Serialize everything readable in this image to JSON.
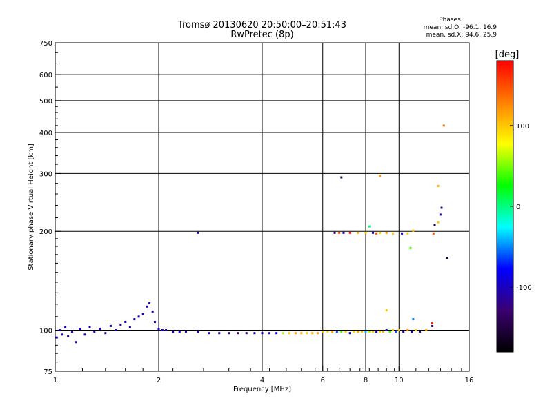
{
  "chart_data": {
    "type": "scatter",
    "title": "Tromsø 20130620 20:50:00–20:51:43",
    "subtitle": "RwPretec (8p)",
    "xlabel": "Frequency [MHz]",
    "ylabel": "Stationary phase Virtual Height [km]",
    "x_scale": "log",
    "y_scale": "log",
    "xlim": [
      1,
      16
    ],
    "ylim": [
      75,
      750
    ],
    "x_ticks": [
      1,
      2,
      4,
      6,
      8,
      10,
      16
    ],
    "x_tick_labels": [
      "1",
      "2",
      "4",
      "6",
      "8",
      "10",
      "16"
    ],
    "y_ticks": [
      75,
      100,
      200,
      300,
      400,
      500,
      600,
      750
    ],
    "y_tick_labels": [
      "75",
      "100",
      "200",
      "300",
      "400",
      "500",
      "600",
      "750"
    ],
    "grid_x": [
      2,
      4,
      6,
      8,
      10
    ],
    "grid_y": [
      100,
      200,
      300,
      400,
      500,
      600
    ],
    "stats": {
      "heading": "Phases",
      "line_o": "mean, sd,O: -96.1, 16.9",
      "line_x": "mean, sd,X:  94.6, 25.9"
    },
    "colorbar": {
      "label": "[deg]",
      "range": [
        -180,
        180
      ],
      "ticks": [
        100,
        0,
        -100
      ],
      "tick_labels": [
        "100",
        "0",
        "-100"
      ],
      "colormap": [
        "#000000",
        "#3a0070",
        "#0000ff",
        "#00ffff",
        "#00ff00",
        "#ffff00",
        "#ff8000",
        "#ff0000"
      ]
    },
    "series": [
      {
        "values": [
          [
            1.01,
            95,
            -105
          ],
          [
            1.03,
            100,
            -110
          ],
          [
            1.05,
            97,
            -100
          ],
          [
            1.07,
            102,
            -95
          ],
          [
            1.09,
            96,
            -120
          ],
          [
            1.12,
            99,
            -100
          ],
          [
            1.15,
            92,
            -110
          ],
          [
            1.18,
            101,
            -90
          ],
          [
            1.22,
            97,
            -100
          ],
          [
            1.26,
            102,
            -105
          ],
          [
            1.3,
            99,
            -100
          ],
          [
            1.35,
            101,
            -95
          ],
          [
            1.4,
            98,
            -110
          ],
          [
            1.45,
            103,
            -100
          ],
          [
            1.5,
            100,
            -100
          ],
          [
            1.55,
            104,
            -120
          ],
          [
            1.6,
            106,
            -100
          ],
          [
            1.65,
            102,
            -110
          ],
          [
            1.7,
            108,
            -100
          ],
          [
            1.75,
            110,
            -95
          ],
          [
            1.8,
            112,
            -105
          ],
          [
            1.85,
            118,
            -100
          ],
          [
            1.88,
            121,
            -110
          ],
          [
            1.92,
            114,
            -100
          ],
          [
            1.95,
            106,
            -100
          ],
          [
            2.0,
            101,
            -100
          ],
          [
            2.05,
            100,
            -105
          ],
          [
            2.1,
            100,
            -100
          ],
          [
            2.2,
            99,
            -100
          ],
          [
            2.3,
            99,
            -95
          ],
          [
            2.4,
            99,
            -100
          ],
          [
            2.6,
            99,
            -100
          ],
          [
            2.8,
            98,
            -100
          ],
          [
            3.0,
            98,
            -110
          ],
          [
            3.2,
            98,
            -120
          ],
          [
            3.4,
            98,
            -130
          ],
          [
            3.6,
            98,
            -120
          ],
          [
            3.8,
            98,
            -110
          ],
          [
            4.0,
            98,
            -100
          ],
          [
            4.2,
            98,
            -100
          ],
          [
            4.4,
            98,
            -80
          ],
          [
            4.6,
            98,
            60
          ],
          [
            4.8,
            98,
            100
          ],
          [
            5.0,
            98,
            120
          ],
          [
            5.2,
            98,
            110
          ],
          [
            5.4,
            98,
            100
          ],
          [
            5.6,
            98,
            110
          ],
          [
            5.8,
            98,
            120
          ],
          [
            6.0,
            99,
            100
          ],
          [
            6.2,
            99,
            90
          ],
          [
            6.4,
            99,
            110
          ],
          [
            6.6,
            99,
            -60
          ],
          [
            6.8,
            99,
            40
          ],
          [
            7.0,
            99,
            100
          ],
          [
            7.2,
            98,
            -100
          ],
          [
            7.4,
            99,
            90
          ],
          [
            7.6,
            99,
            110
          ],
          [
            7.8,
            99,
            100
          ],
          [
            8.0,
            99,
            -40
          ],
          [
            8.2,
            99,
            60
          ],
          [
            8.4,
            99,
            100
          ],
          [
            8.6,
            99,
            -100
          ],
          [
            8.8,
            99,
            90
          ],
          [
            9.0,
            99,
            110
          ],
          [
            9.2,
            100,
            -100
          ],
          [
            9.4,
            99,
            40
          ],
          [
            9.6,
            100,
            100
          ],
          [
            9.8,
            99,
            -60
          ],
          [
            10.0,
            100,
            100
          ],
          [
            10.3,
            99,
            -100
          ],
          [
            10.6,
            100,
            120
          ],
          [
            10.9,
            99,
            -100
          ],
          [
            11.2,
            100,
            90
          ],
          [
            11.5,
            99,
            -120
          ],
          [
            12.0,
            100,
            110
          ],
          [
            12.5,
            103,
            -130
          ]
        ]
      },
      {
        "values": [
          [
            2.6,
            198,
            -110
          ],
          [
            6.8,
            292,
            -150
          ],
          [
            8.8,
            295,
            120
          ],
          [
            6.5,
            198,
            -130
          ],
          [
            6.7,
            198,
            150
          ],
          [
            6.9,
            198,
            -100
          ],
          [
            7.2,
            198,
            170
          ],
          [
            7.6,
            198,
            110
          ],
          [
            8.0,
            198,
            100
          ],
          [
            8.2,
            207,
            0
          ],
          [
            8.4,
            198,
            -110
          ],
          [
            8.6,
            197,
            150
          ],
          [
            8.8,
            198,
            100
          ],
          [
            9.2,
            198,
            120
          ],
          [
            9.6,
            197,
            100
          ],
          [
            10.2,
            197,
            -100
          ],
          [
            10.6,
            197,
            100
          ],
          [
            11.0,
            201,
            100
          ],
          [
            12.6,
            197,
            150
          ],
          [
            9.2,
            115,
            100
          ],
          [
            12.5,
            105,
            170
          ],
          [
            12.7,
            209,
            -150
          ],
          [
            13.0,
            213,
            100
          ],
          [
            13.2,
            225,
            -110
          ],
          [
            13.3,
            236,
            -120
          ],
          [
            13.0,
            275,
            110
          ],
          [
            13.5,
            420,
            130
          ],
          [
            13.8,
            166,
            -150
          ],
          [
            10.8,
            178,
            40
          ],
          [
            11.0,
            108,
            -50
          ]
        ]
      }
    ]
  }
}
